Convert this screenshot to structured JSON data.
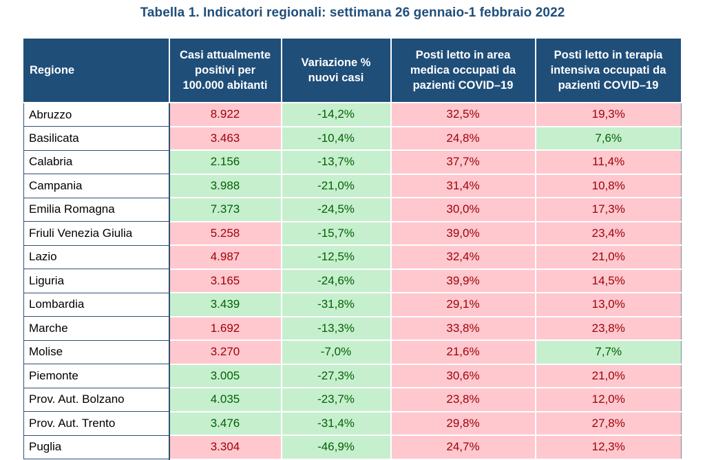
{
  "title": "Tabella 1. Indicatori regionali: settimana 26 gennaio-1 febbraio 2022",
  "colors": {
    "header_bg": "#1f4e79",
    "red_fill": "#ffc7ce",
    "red_text": "#9c0006",
    "green_fill": "#c6efce",
    "green_text": "#006100"
  },
  "headers": [
    "Regione",
    "Casi attualmente positivi per 100.000 abitanti",
    "Variazione % nuovi casi",
    "Posti letto in area medica occupati da pazienti COVID–19",
    "Posti letto in terapia intensiva occupati da pazienti COVID–19"
  ],
  "rows": [
    {
      "region": "Abruzzo",
      "cases": "8.922",
      "cases_status": "red",
      "variation": "-14,2%",
      "variation_status": "green",
      "medical": "32,5%",
      "medical_status": "red",
      "icu": "19,3%",
      "icu_status": "red"
    },
    {
      "region": "Basilicata",
      "cases": "3.463",
      "cases_status": "red",
      "variation": "-10,4%",
      "variation_status": "green",
      "medical": "24,8%",
      "medical_status": "red",
      "icu": "7,6%",
      "icu_status": "green"
    },
    {
      "region": "Calabria",
      "cases": "2.156",
      "cases_status": "green",
      "variation": "-13,7%",
      "variation_status": "green",
      "medical": "37,7%",
      "medical_status": "red",
      "icu": "11,4%",
      "icu_status": "red"
    },
    {
      "region": "Campania",
      "cases": "3.988",
      "cases_status": "green",
      "variation": "-21,0%",
      "variation_status": "green",
      "medical": "31,4%",
      "medical_status": "red",
      "icu": "10,8%",
      "icu_status": "red"
    },
    {
      "region": "Emilia Romagna",
      "cases": "7.373",
      "cases_status": "green",
      "variation": "-24,5%",
      "variation_status": "green",
      "medical": "30,0%",
      "medical_status": "red",
      "icu": "17,3%",
      "icu_status": "red"
    },
    {
      "region": "Friuli Venezia Giulia",
      "cases": "5.258",
      "cases_status": "red",
      "variation": "-15,7%",
      "variation_status": "green",
      "medical": "39,0%",
      "medical_status": "red",
      "icu": "23,4%",
      "icu_status": "red"
    },
    {
      "region": "Lazio",
      "cases": "4.987",
      "cases_status": "red",
      "variation": "-12,5%",
      "variation_status": "green",
      "medical": "32,4%",
      "medical_status": "red",
      "icu": "21,0%",
      "icu_status": "red"
    },
    {
      "region": "Liguria",
      "cases": "3.165",
      "cases_status": "red",
      "variation": "-24,6%",
      "variation_status": "green",
      "medical": "39,9%",
      "medical_status": "red",
      "icu": "14,5%",
      "icu_status": "red"
    },
    {
      "region": "Lombardia",
      "cases": "3.439",
      "cases_status": "green",
      "variation": "-31,8%",
      "variation_status": "green",
      "medical": "29,1%",
      "medical_status": "red",
      "icu": "13,0%",
      "icu_status": "red"
    },
    {
      "region": "Marche",
      "cases": "1.692",
      "cases_status": "red",
      "variation": "-13,3%",
      "variation_status": "green",
      "medical": "33,8%",
      "medical_status": "red",
      "icu": "23,8%",
      "icu_status": "red"
    },
    {
      "region": "Molise",
      "cases": "3.270",
      "cases_status": "red",
      "variation": "-7,0%",
      "variation_status": "green",
      "medical": "21,6%",
      "medical_status": "red",
      "icu": "7,7%",
      "icu_status": "green"
    },
    {
      "region": "Piemonte",
      "cases": "3.005",
      "cases_status": "green",
      "variation": "-27,3%",
      "variation_status": "green",
      "medical": "30,6%",
      "medical_status": "red",
      "icu": "21,0%",
      "icu_status": "red"
    },
    {
      "region": "Prov. Aut. Bolzano",
      "cases": "4.035",
      "cases_status": "green",
      "variation": "-23,7%",
      "variation_status": "green",
      "medical": "23,8%",
      "medical_status": "red",
      "icu": "12,0%",
      "icu_status": "red"
    },
    {
      "region": "Prov. Aut. Trento",
      "cases": "3.476",
      "cases_status": "green",
      "variation": "-31,4%",
      "variation_status": "green",
      "medical": "29,8%",
      "medical_status": "red",
      "icu": "27,8%",
      "icu_status": "red"
    },
    {
      "region": "Puglia",
      "cases": "3.304",
      "cases_status": "red",
      "variation": "-46,9%",
      "variation_status": "green",
      "medical": "24,7%",
      "medical_status": "red",
      "icu": "12,3%",
      "icu_status": "red"
    }
  ]
}
